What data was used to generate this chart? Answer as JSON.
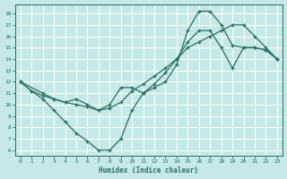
{
  "xlabel": "Humidex (Indice chaleur)",
  "bg_color": "#c5e8e8",
  "grid_color": "#ffffff",
  "line_color": "#2a6e62",
  "xlim": [
    -0.5,
    23.5
  ],
  "ylim": [
    5.5,
    18.8
  ],
  "yticks": [
    6,
    7,
    8,
    9,
    10,
    11,
    12,
    13,
    14,
    15,
    16,
    17,
    18
  ],
  "xticks": [
    0,
    1,
    2,
    3,
    4,
    5,
    6,
    7,
    8,
    9,
    10,
    11,
    12,
    13,
    14,
    15,
    16,
    17,
    18,
    19,
    20,
    21,
    22,
    23
  ],
  "curve1_x": [
    0,
    1,
    2,
    3,
    4,
    5,
    6,
    7,
    8,
    9,
    10,
    11,
    12,
    13,
    14,
    15,
    16,
    17,
    18,
    19,
    20,
    21,
    22,
    23
  ],
  "curve1_y": [
    12,
    11.2,
    10.8,
    10.5,
    10.2,
    10.0,
    9.8,
    9.5,
    9.7,
    10.2,
    11.2,
    11.8,
    12.5,
    13.2,
    14.0,
    15.0,
    15.5,
    16.0,
    16.5,
    17.0,
    17.0,
    16.0,
    15.0,
    14.0
  ],
  "curve2_x": [
    0,
    1,
    2,
    3,
    4,
    5,
    6,
    7,
    8,
    9,
    10,
    11,
    12,
    13,
    14,
    15,
    16,
    17,
    18,
    19,
    20,
    21,
    22,
    23
  ],
  "curve2_y": [
    12,
    11.2,
    10.5,
    9.5,
    8.5,
    7.5,
    6.8,
    6.0,
    6.0,
    7.0,
    9.5,
    11.0,
    11.5,
    12.0,
    13.5,
    16.5,
    18.2,
    18.2,
    17.0,
    15.2,
    15.0,
    15.0,
    14.8,
    14.0
  ],
  "curve3_x": [
    0,
    2,
    3,
    4,
    5,
    6,
    7,
    8,
    9,
    10,
    11,
    12,
    13,
    14,
    15,
    16,
    17,
    18,
    19,
    20,
    21,
    22,
    23
  ],
  "curve3_y": [
    12,
    11.0,
    10.5,
    10.2,
    10.5,
    10.0,
    9.5,
    10.0,
    11.5,
    11.5,
    11.0,
    11.8,
    12.8,
    14.0,
    15.5,
    16.5,
    16.5,
    15.0,
    13.2,
    15.0,
    15.0,
    14.8,
    14.0
  ]
}
